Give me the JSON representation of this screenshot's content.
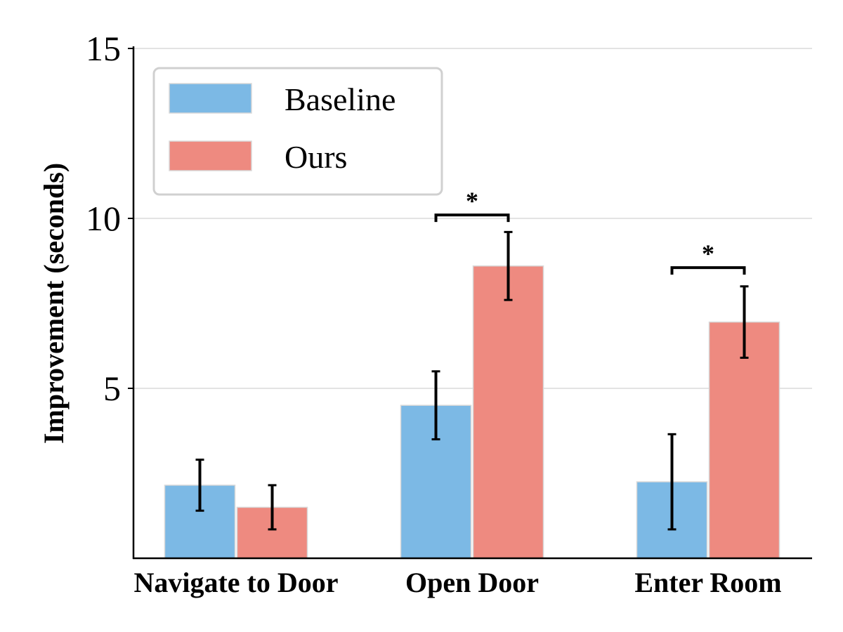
{
  "chart_data": {
    "type": "bar",
    "title": "",
    "xlabel": "",
    "ylabel": "Improvement (seconds)",
    "ylim": [
      0,
      15
    ],
    "yticks": [
      5,
      10,
      15
    ],
    "grid": true,
    "legend_position": "top-left",
    "categories": [
      "Navigate to Door",
      "Open Door",
      "Enter Room"
    ],
    "series": [
      {
        "name": "Baseline",
        "color": "#7cb9e5",
        "values": [
          2.15,
          4.5,
          2.25
        ],
        "errors": [
          0.75,
          1.0,
          1.4
        ]
      },
      {
        "name": "Ours",
        "color": "#ee8a80",
        "values": [
          1.5,
          8.6,
          6.95
        ],
        "errors": [
          0.65,
          1.0,
          1.05
        ]
      }
    ],
    "annotations": [
      {
        "category_index": 1,
        "text": "*",
        "y": 10.1
      },
      {
        "category_index": 2,
        "text": "*",
        "y": 8.55
      }
    ]
  }
}
